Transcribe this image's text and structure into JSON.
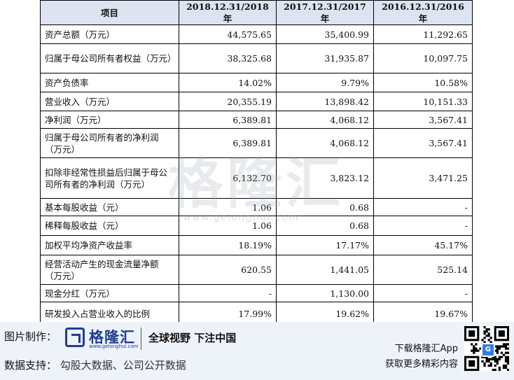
{
  "table": {
    "headers": [
      "项目",
      "2018.12.31/2018 年",
      "2017.12.31/2017 年",
      "2016.12.31/2016 年"
    ],
    "rows": [
      {
        "label": "资产总额（万元）",
        "values": [
          "44,575.65",
          "35,400.99",
          "11,292.65"
        ]
      },
      {
        "label": "归属于母公司所有者权益（万元）",
        "values": [
          "38,325.68",
          "31,935.87",
          "10,097.75"
        ]
      },
      {
        "label": "资产负债率",
        "values": [
          "14.02%",
          "9.79%",
          "10.58%"
        ]
      },
      {
        "label": "营业收入（万元）",
        "values": [
          "20,355.19",
          "13,898.42",
          "10,151.33"
        ]
      },
      {
        "label": "净利润（万元）",
        "values": [
          "6,389.81",
          "4,068.12",
          "3,567.41"
        ]
      },
      {
        "label": "归属于母公司所有者的净利润（万元）",
        "values": [
          "6,389.81",
          "4,068.12",
          "3,567.41"
        ]
      },
      {
        "label": "扣除非经常性损益后归属于母公司所有者的净利润（万元）",
        "values": [
          "6,132.70",
          "3,823.12",
          "3,471.25"
        ]
      },
      {
        "label": "基本每股收益（元）",
        "values": [
          "1.06",
          "0.68",
          "-"
        ]
      },
      {
        "label": "稀释每股收益（元）",
        "values": [
          "1.06",
          "0.68",
          "-"
        ]
      },
      {
        "label": "加权平均净资产收益率",
        "values": [
          "18.19%",
          "17.17%",
          "45.17%"
        ]
      },
      {
        "label": "经营活动产生的现金流量净额（万元）",
        "values": [
          "620.55",
          "1,441.05",
          "525.14"
        ]
      },
      {
        "label": "现金分红（万元）",
        "values": [
          "-",
          "1,130.00",
          "-"
        ]
      },
      {
        "label": "研发投入占营业收入的比例",
        "values": [
          "17.99%",
          "19.62%",
          "19.67%"
        ]
      }
    ]
  },
  "watermark": {
    "text": "格隆汇",
    "url": "www.gelonghui.com"
  },
  "footer": {
    "made_by_label": "图片制作：",
    "logo_name": "格隆汇",
    "logo_url": "www.gelonghui.com",
    "slogan": "全球视野 下注中国",
    "data_support_label": "数据支持：",
    "data_sources": "勾股大数据、公司公开数据",
    "app_line1": "下载格隆汇App",
    "app_line2": "获取更多精彩内容",
    "qr_badge": "G"
  },
  "colors": {
    "header_bg": "#dbe4f0",
    "footer_bg": "#eef2f9",
    "brand": "#1f3f8f",
    "qr_badge": "#2f7fe0"
  },
  "icons": [
    "gelonghui-logo-icon",
    "qr-code-icon"
  ]
}
